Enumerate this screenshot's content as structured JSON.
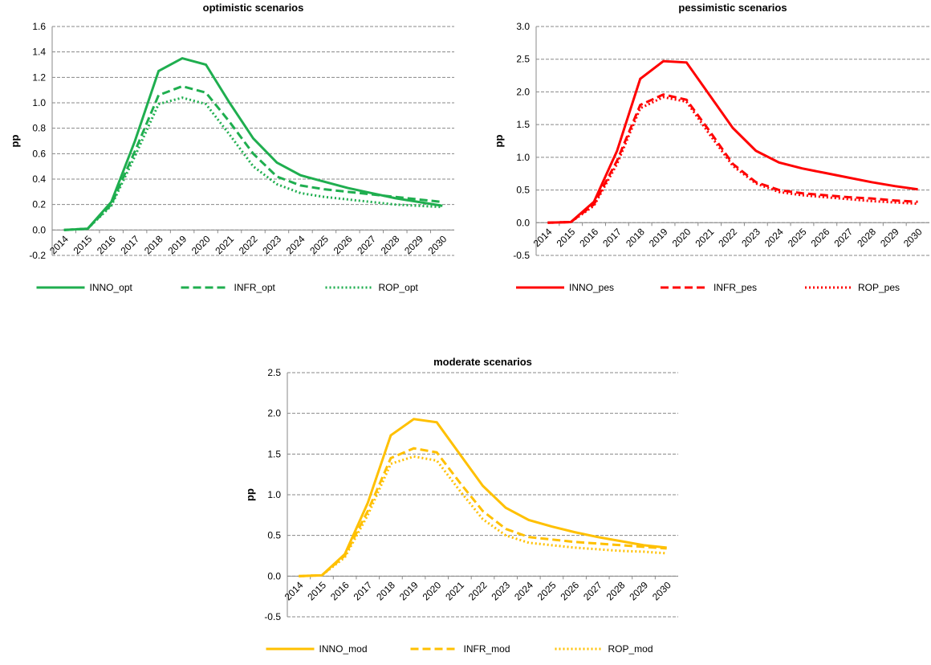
{
  "chart_data": [
    {
      "type": "line",
      "title": "optimistic scenarios",
      "y_label": "pp",
      "categories": [
        "2014",
        "2015",
        "2016",
        "2017",
        "2018",
        "2019",
        "2020",
        "2021",
        "2022",
        "2023",
        "2024",
        "2025",
        "2026",
        "2027",
        "2028",
        "2029",
        "2030"
      ],
      "ylim": [
        -0.2,
        1.6
      ],
      "yticks": [
        -0.2,
        {
          "value": 0,
          "label": "0.0"
        },
        0.2,
        0.4,
        0.6,
        0.8,
        {
          "value": 1,
          "label": "1.0"
        },
        1.2,
        1.4,
        1.6
      ],
      "grid": true,
      "series": [
        {
          "name": "INNO_opt",
          "color": "#1fae4f",
          "style": "solid",
          "values": [
            0,
            0.01,
            0.22,
            0.7,
            1.25,
            1.35,
            1.3,
            1.0,
            0.72,
            0.53,
            0.43,
            0.38,
            0.33,
            0.29,
            0.25,
            0.22,
            0.19
          ]
        },
        {
          "name": "INFR_opt",
          "color": "#1fae4f",
          "style": "dashed",
          "values": [
            0,
            0.01,
            0.2,
            0.62,
            1.06,
            1.13,
            1.08,
            0.85,
            0.6,
            0.42,
            0.35,
            0.32,
            0.3,
            0.28,
            0.26,
            0.24,
            0.22
          ]
        },
        {
          "name": "ROP_opt",
          "color": "#1fae4f",
          "style": "dotted",
          "values": [
            0,
            0.01,
            0.19,
            0.58,
            0.99,
            1.04,
            0.99,
            0.75,
            0.5,
            0.36,
            0.29,
            0.26,
            0.24,
            0.22,
            0.2,
            0.19,
            0.18
          ]
        }
      ]
    },
    {
      "type": "line",
      "title": "pessimistic scenarios",
      "y_label": "pp",
      "categories": [
        "2014",
        "2015",
        "2016",
        "2017",
        "2018",
        "2019",
        "2020",
        "2021",
        "2022",
        "2023",
        "2024",
        "2025",
        "2026",
        "2027",
        "2028",
        "2029",
        "2030"
      ],
      "ylim": [
        -0.5,
        3.0
      ],
      "yticks": [
        -0.5,
        {
          "value": 0,
          "label": "0.0"
        },
        0.5,
        {
          "value": 1,
          "label": "1.0"
        },
        1.5,
        {
          "value": 2,
          "label": "2.0"
        },
        2.5,
        {
          "value": 3,
          "label": "3.0"
        }
      ],
      "grid": true,
      "series": [
        {
          "name": "INNO_pes",
          "color": "#ff0000",
          "style": "solid",
          "values": [
            0,
            0.01,
            0.32,
            1.1,
            2.2,
            2.47,
            2.45,
            1.95,
            1.45,
            1.1,
            0.92,
            0.83,
            0.76,
            0.69,
            0.62,
            0.56,
            0.51
          ]
        },
        {
          "name": "INFR_pes",
          "color": "#ff0000",
          "style": "dashed",
          "values": [
            0,
            0.01,
            0.28,
            0.95,
            1.8,
            1.96,
            1.88,
            1.4,
            0.9,
            0.62,
            0.5,
            0.45,
            0.42,
            0.39,
            0.37,
            0.34,
            0.32
          ]
        },
        {
          "name": "ROP_pes",
          "color": "#ff0000",
          "style": "dotted",
          "values": [
            0,
            0.01,
            0.26,
            0.9,
            1.75,
            1.92,
            1.85,
            1.35,
            0.87,
            0.6,
            0.47,
            0.42,
            0.39,
            0.36,
            0.33,
            0.31,
            0.29
          ]
        }
      ]
    },
    {
      "type": "line",
      "title": "moderate scenarios",
      "y_label": "pp",
      "categories": [
        "2014",
        "2015",
        "2016",
        "2017",
        "2018",
        "2019",
        "2020",
        "2021",
        "2022",
        "2023",
        "2024",
        "2025",
        "2026",
        "2027",
        "2028",
        "2029",
        "2030"
      ],
      "ylim": [
        -0.5,
        2.5
      ],
      "yticks": [
        -0.5,
        {
          "value": 0,
          "label": "0.0"
        },
        0.5,
        {
          "value": 1,
          "label": "1.0"
        },
        1.5,
        {
          "value": 2,
          "label": "2.0"
        },
        2.5
      ],
      "grid": true,
      "series": [
        {
          "name": "INNO_mod",
          "color": "#ffc000",
          "style": "solid",
          "values": [
            0,
            0.01,
            0.27,
            0.9,
            1.73,
            1.93,
            1.89,
            1.5,
            1.11,
            0.84,
            0.69,
            0.61,
            0.54,
            0.48,
            0.43,
            0.38,
            0.35
          ]
        },
        {
          "name": "INFR_mod",
          "color": "#ffc000",
          "style": "dashed",
          "values": [
            0,
            0.01,
            0.25,
            0.8,
            1.45,
            1.57,
            1.52,
            1.15,
            0.8,
            0.58,
            0.48,
            0.45,
            0.42,
            0.4,
            0.38,
            0.36,
            0.34
          ]
        },
        {
          "name": "ROP_mod",
          "color": "#ffc000",
          "style": "dotted",
          "values": [
            0,
            0.01,
            0.23,
            0.75,
            1.38,
            1.47,
            1.42,
            1.05,
            0.7,
            0.5,
            0.41,
            0.38,
            0.35,
            0.33,
            0.31,
            0.3,
            0.28
          ]
        }
      ]
    }
  ]
}
